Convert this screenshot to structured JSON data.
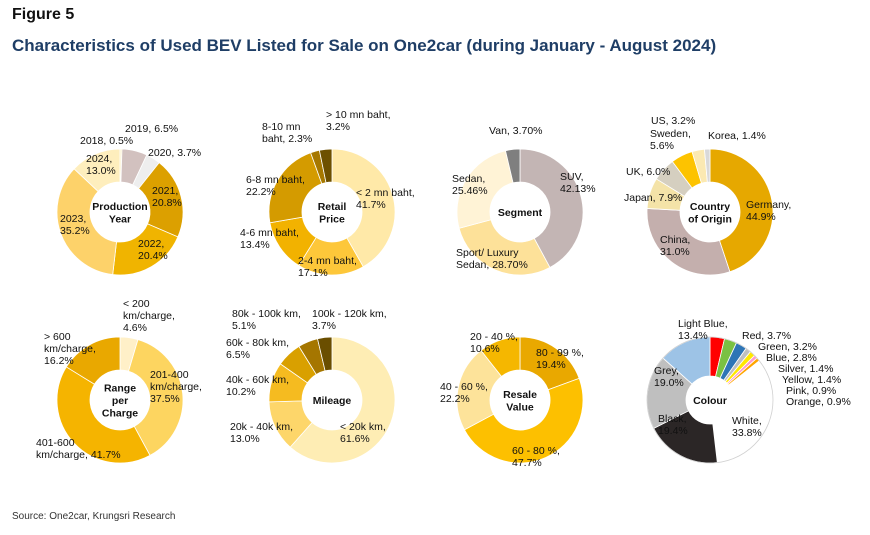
{
  "figure_label": "Figure 5",
  "title": "Characteristics of Used BEV Listed for Sale on One2car (during January - August 2024)",
  "source": "Source: One2car, Krungsri Research",
  "chart_data": [
    {
      "type": "pie",
      "center_label": [
        "Production",
        "Year"
      ],
      "start_angle": 0,
      "slices": [
        {
          "value": 0.5,
          "color": "#fdf0c6",
          "label": [
            "2018, 0.5%"
          ]
        },
        {
          "value": 6.5,
          "color": "#d2c1bf",
          "label": [
            "2019, 6.5%"
          ]
        },
        {
          "value": 3.7,
          "color": "#eeeeee",
          "label": [
            "2020, 3.7%"
          ]
        },
        {
          "value": 20.8,
          "color": "#dca000",
          "label": [
            "2021,",
            "20.8%"
          ]
        },
        {
          "value": 20.4,
          "color": "#f0b400",
          "label": [
            "2022,",
            "20.4%"
          ]
        },
        {
          "value": 35.2,
          "color": "#fdd26a",
          "label": [
            "2023,",
            "35.2%"
          ]
        },
        {
          "value": 13.0,
          "color": "#feeebd",
          "label": [
            "2024,",
            "13.0%"
          ]
        }
      ]
    },
    {
      "type": "pie",
      "center_label": [
        "Retail",
        "Price"
      ],
      "start_angle": 0,
      "slices": [
        {
          "value": 41.7,
          "color": "#ffe9a8",
          "label": [
            "< 2 mn baht,",
            "41.7%"
          ]
        },
        {
          "value": 17.1,
          "color": "#fdc73a",
          "label": [
            "2-4 mn baht,",
            "17.1%"
          ]
        },
        {
          "value": 13.4,
          "color": "#f2b200",
          "label": [
            "4-6 mn baht,",
            "13.4%"
          ]
        },
        {
          "value": 22.2,
          "color": "#d49b00",
          "label": [
            "6-8 mn baht,",
            "22.2%"
          ]
        },
        {
          "value": 2.3,
          "color": "#a67800",
          "label": [
            "8-10 mn",
            "baht, 2.3%"
          ]
        },
        {
          "value": 3.2,
          "color": "#6d5000",
          "label": [
            "> 10 mn baht,",
            "3.2%"
          ]
        }
      ]
    },
    {
      "type": "pie",
      "center_label": [
        "Segment"
      ],
      "start_angle": 0,
      "slices": [
        {
          "value": 42.13,
          "color": "#c3b5b4",
          "label": [
            "SUV,",
            "42.13%"
          ]
        },
        {
          "value": 28.7,
          "color": "#fde199",
          "label": [
            "Sport/ Luxury",
            "Sedan, 28.70%"
          ]
        },
        {
          "value": 25.46,
          "color": "#fff3d6",
          "label": [
            "Sedan,",
            "25.46%"
          ]
        },
        {
          "value": 3.7,
          "color": "#7f7f7f",
          "label": [
            "Van, 3.70%"
          ]
        }
      ]
    },
    {
      "type": "pie",
      "center_label": [
        "Country",
        "of Origin"
      ],
      "start_angle": 0,
      "slices": [
        {
          "value": 44.9,
          "color": "#e6a800",
          "label": [
            "Germany,",
            "44.9%"
          ]
        },
        {
          "value": 31.0,
          "color": "#c4afad",
          "label": [
            "China,",
            "31.0%"
          ]
        },
        {
          "value": 7.9,
          "color": "#f4e3a8",
          "label": [
            "Japan, 7.9%"
          ]
        },
        {
          "value": 6.0,
          "color": "#d5cfc0",
          "label": [
            "UK, 6.0%"
          ]
        },
        {
          "value": 5.6,
          "color": "#fdc300",
          "label": [
            "Sweden,",
            "5.6%"
          ]
        },
        {
          "value": 3.2,
          "color": "#fbe9b2",
          "label": [
            "US, 3.2%"
          ]
        },
        {
          "value": 1.4,
          "color": "#d9d9d9",
          "label": [
            "Korea, 1.4%"
          ]
        }
      ]
    },
    {
      "type": "pie",
      "center_label": [
        "Range",
        "per",
        "Charge"
      ],
      "start_angle": 0,
      "slices": [
        {
          "value": 4.6,
          "color": "#fff0c8",
          "label": [
            "< 200",
            "km/charge,",
            "4.6%"
          ]
        },
        {
          "value": 37.5,
          "color": "#fdd560",
          "label": [
            "201-400",
            "km/charge,",
            "37.5%"
          ]
        },
        {
          "value": 41.7,
          "color": "#f5b400",
          "label": [
            "401-600",
            "km/charge, 41.7%"
          ]
        },
        {
          "value": 16.2,
          "color": "#e9a800",
          "label": [
            "> 600",
            "km/charge,",
            "16.2%"
          ]
        }
      ]
    },
    {
      "type": "pie",
      "center_label": [
        "Mileage"
      ],
      "start_angle": 0,
      "slices": [
        {
          "value": 61.6,
          "color": "#feedb4",
          "label": [
            "< 20k km,",
            "61.6%"
          ]
        },
        {
          "value": 13.0,
          "color": "#fdd66a",
          "label": [
            "20k - 40k km,",
            "13.0%"
          ]
        },
        {
          "value": 10.2,
          "color": "#f5bb20",
          "label": [
            "40k - 60k km,",
            "10.2%"
          ]
        },
        {
          "value": 6.5,
          "color": "#d9a000",
          "label": [
            "60k - 80k km,",
            "6.5%"
          ]
        },
        {
          "value": 5.1,
          "color": "#a57600",
          "label": [
            "80k - 100k km,",
            "5.1%"
          ]
        },
        {
          "value": 3.7,
          "color": "#6a4e00",
          "label": [
            "100k - 120k km,",
            "3.7%"
          ]
        }
      ]
    },
    {
      "type": "pie",
      "center_label": [
        "Resale",
        "Value"
      ],
      "start_angle": 0,
      "slices": [
        {
          "value": 19.4,
          "color": "#e9a800",
          "label": [
            "80 - 99 %,",
            "19.4%"
          ]
        },
        {
          "value": 47.7,
          "color": "#fdc000",
          "label": [
            "60 - 80 %,",
            "47.7%"
          ]
        },
        {
          "value": 22.2,
          "color": "#fde39a",
          "label": [
            "40 - 60 %,",
            "22.2%"
          ]
        },
        {
          "value": 10.6,
          "color": "#f5b700",
          "label": [
            "20 - 40 %,",
            "10.6%"
          ]
        }
      ]
    },
    {
      "type": "pie",
      "center_label": [
        "Colour"
      ],
      "start_angle": 0,
      "slices": [
        {
          "value": 3.7,
          "color": "#ff0000",
          "label": [
            "Red, 3.7%"
          ]
        },
        {
          "value": 3.2,
          "color": "#7ac143",
          "label": [
            "Green, 3.2%"
          ]
        },
        {
          "value": 2.8,
          "color": "#2e75b6",
          "label": [
            "Blue, 2.8%"
          ]
        },
        {
          "value": 1.4,
          "color": "#bfbfbf",
          "label": [
            "Silver, 1.4%"
          ]
        },
        {
          "value": 1.4,
          "color": "#ffe800",
          "label": [
            "Yellow, 1.4%"
          ]
        },
        {
          "value": 0.9,
          "color": "#ff99cc",
          "label": [
            "Pink, 0.9%"
          ]
        },
        {
          "value": 0.9,
          "color": "#ffa500",
          "label": [
            "Orange, 0.9%"
          ]
        },
        {
          "value": 33.8,
          "color": "#ffffff",
          "label": [
            "White,",
            "33.8%"
          ]
        },
        {
          "value": 19.4,
          "color": "#2b2626",
          "label": [
            "Black,",
            "19.4%"
          ]
        },
        {
          "value": 19.0,
          "color": "#bfbfbf",
          "label": [
            "Grey,",
            "19.0%"
          ]
        },
        {
          "value": 13.4,
          "color": "#9dc3e6",
          "label": [
            "Light Blue,",
            "13.4%"
          ]
        }
      ]
    }
  ]
}
